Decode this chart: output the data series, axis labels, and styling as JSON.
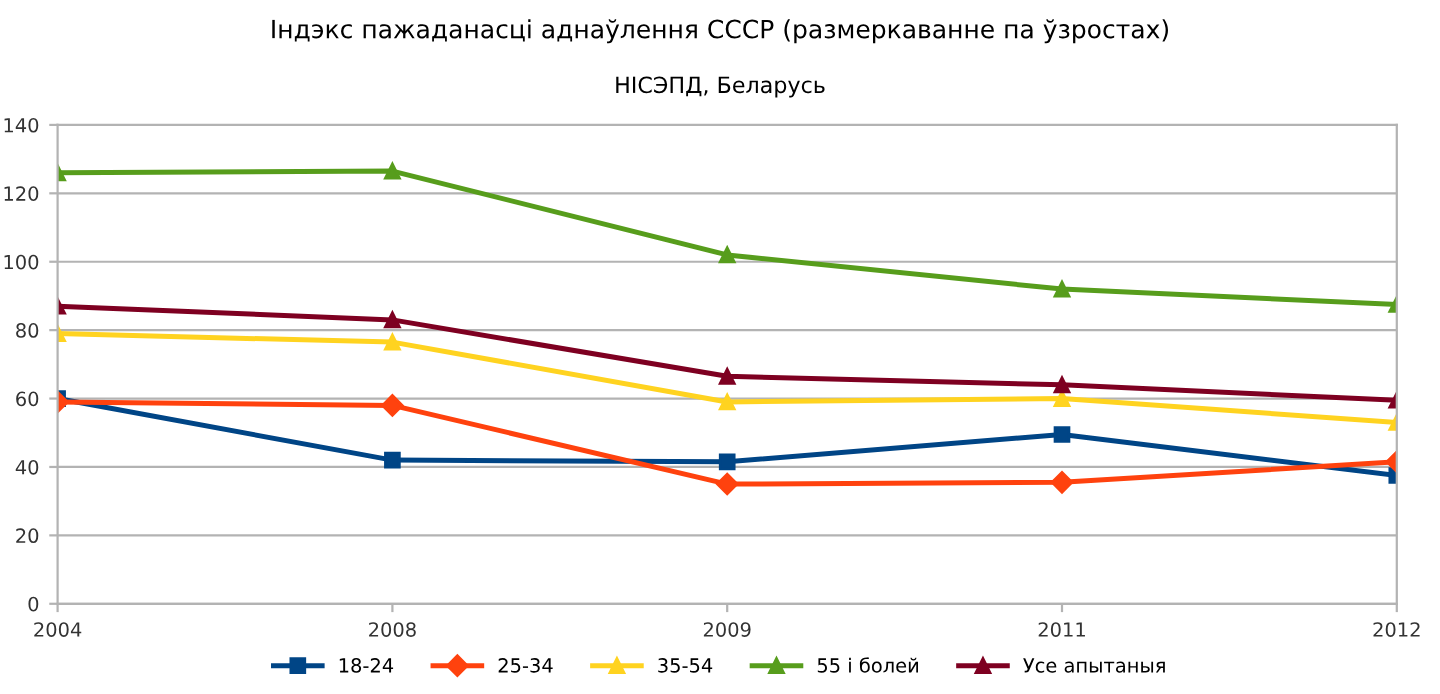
{
  "chart_data": {
    "type": "line",
    "title": "Індэкс пажаданасці аднаўлення СССР (размеркаванне па ўзростах)",
    "subtitle": "НІСЭПД, Беларусь",
    "categories": [
      "2004",
      "2008",
      "2009",
      "2011",
      "2012"
    ],
    "series": [
      {
        "name": "18-24",
        "color": "#004586",
        "marker": "square",
        "values": [
          60,
          42,
          41.5,
          49.5,
          37.5
        ]
      },
      {
        "name": "25-34",
        "color": "#ff420e",
        "marker": "diamond",
        "values": [
          59,
          58,
          35,
          35.5,
          41.5
        ]
      },
      {
        "name": "35-54",
        "color": "#ffd320",
        "marker": "triangle",
        "values": [
          79,
          76.5,
          59,
          60,
          53
        ]
      },
      {
        "name": "55 і болей",
        "color": "#579d1c",
        "marker": "triangle",
        "values": [
          126,
          126.5,
          102,
          92,
          87.5
        ]
      },
      {
        "name": "Усе апытаныя",
        "color": "#7e0021",
        "marker": "triangle",
        "values": [
          87,
          83,
          66.5,
          64,
          59.5
        ]
      }
    ],
    "ylim": [
      0,
      140
    ],
    "yticks": [
      0,
      20,
      40,
      60,
      80,
      100,
      120,
      140
    ],
    "grid": "y",
    "legend": "bottom",
    "line_style": "solid"
  }
}
